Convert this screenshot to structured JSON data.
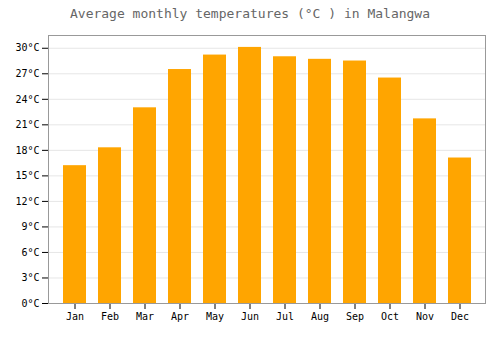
{
  "chart_data": {
    "type": "bar",
    "title": "Average monthly temperatures (°C ) in Malangwa",
    "categories": [
      "Jan",
      "Feb",
      "Mar",
      "Apr",
      "May",
      "Jun",
      "Jul",
      "Aug",
      "Sep",
      "Oct",
      "Nov",
      "Dec"
    ],
    "values": [
      16.2,
      18.3,
      23.0,
      27.5,
      29.2,
      30.1,
      29.0,
      28.7,
      28.5,
      26.5,
      21.7,
      17.1
    ],
    "color": "#FFA500",
    "ylim": [
      0,
      31.5
    ],
    "yticks": [
      {
        "value": 0,
        "label": "0°C"
      },
      {
        "value": 3,
        "label": "3°C"
      },
      {
        "value": 6,
        "label": "6°C"
      },
      {
        "value": 9,
        "label": "9°C"
      },
      {
        "value": 12,
        "label": "12°C"
      },
      {
        "value": 15,
        "label": "15°C"
      },
      {
        "value": 18,
        "label": "18°C"
      },
      {
        "value": 21,
        "label": "21°C"
      },
      {
        "value": 24,
        "label": "24°C"
      },
      {
        "value": 27,
        "label": "27°C"
      },
      {
        "value": 30,
        "label": "30°C"
      }
    ],
    "grid": true
  }
}
